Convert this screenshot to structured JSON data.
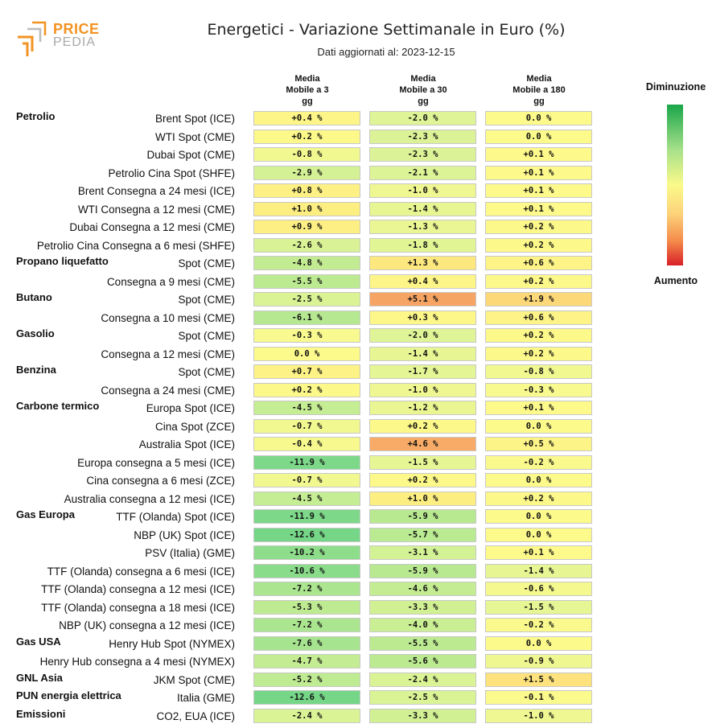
{
  "logo": {
    "word1": "PRICE",
    "word2": "PEDIA"
  },
  "colors": {
    "brand_orange": "#f39322",
    "brand_gray": "#a8a8a8"
  },
  "chart_data": {
    "type": "heatmap",
    "title": "Energetici - Variazione Settimanale in Euro (%)",
    "subtitle": "Dati aggiornati al: 2023-12-15",
    "columns": [
      [
        "Media",
        "Mobile a 3",
        "gg"
      ],
      [
        "Media",
        "Mobile a 30",
        "gg"
      ],
      [
        "Media",
        "Mobile a 180",
        "gg"
      ]
    ],
    "legend": {
      "top": "Diminuzione",
      "bottom": "Aumento"
    },
    "rows": [
      {
        "group": "Petrolio",
        "label": "Brent Spot (ICE)",
        "values": [
          0.4,
          -2.0,
          0.0
        ]
      },
      {
        "label": "WTI Spot (CME)",
        "values": [
          0.2,
          -2.3,
          0.0
        ]
      },
      {
        "label": "Dubai Spot (CME)",
        "values": [
          -0.8,
          -2.3,
          0.1
        ]
      },
      {
        "label": "Petrolio Cina Spot (SHFE)",
        "values": [
          -2.9,
          -2.1,
          0.1
        ]
      },
      {
        "label": "Brent Consegna a 24 mesi (ICE)",
        "values": [
          0.8,
          -1.0,
          0.1
        ]
      },
      {
        "label": "WTI Consegna a 12 mesi (CME)",
        "values": [
          1.0,
          -1.4,
          0.1
        ]
      },
      {
        "label": "Dubai Consegna a 12 mesi (CME)",
        "values": [
          0.9,
          -1.3,
          0.2
        ]
      },
      {
        "label": "Petrolio Cina Consegna a 6 mesi (SHFE)",
        "values": [
          -2.6,
          -1.8,
          0.2
        ]
      },
      {
        "group": "Propano liquefatto",
        "label": "Spot (CME)",
        "values": [
          -4.8,
          1.3,
          0.6
        ]
      },
      {
        "label": "Consegna a 9 mesi (CME)",
        "values": [
          -5.5,
          0.4,
          0.2
        ]
      },
      {
        "group": "Butano",
        "label": "Spot (CME)",
        "values": [
          -2.5,
          5.1,
          1.9
        ]
      },
      {
        "label": "Consegna a 10 mesi (CME)",
        "values": [
          -6.1,
          0.3,
          0.6
        ]
      },
      {
        "group": "Gasolio",
        "label": "Spot (CME)",
        "values": [
          -0.3,
          -2.0,
          0.2
        ]
      },
      {
        "label": "Consegna a 12 mesi (CME)",
        "values": [
          0.0,
          -1.4,
          0.2
        ]
      },
      {
        "group": "Benzina",
        "label": "Spot (CME)",
        "values": [
          0.7,
          -1.7,
          -0.8
        ]
      },
      {
        "label": "Consegna a 24 mesi (CME)",
        "values": [
          0.2,
          -1.0,
          -0.3
        ]
      },
      {
        "group": "Carbone termico",
        "label": "Europa Spot (ICE)",
        "values": [
          -4.5,
          -1.2,
          0.1
        ]
      },
      {
        "label": "Cina Spot (ZCE)",
        "values": [
          -0.7,
          0.2,
          0.0
        ]
      },
      {
        "label": "Australia Spot (ICE)",
        "values": [
          -0.4,
          4.6,
          0.5
        ]
      },
      {
        "label": "Europa consegna a 5 mesi (ICE)",
        "values": [
          -11.9,
          -1.5,
          -0.2
        ]
      },
      {
        "label": "Cina consegna a 6 mesi (ZCE)",
        "values": [
          -0.7,
          0.2,
          0.0
        ]
      },
      {
        "label": "Australia consegna a 12 mesi (ICE)",
        "values": [
          -4.5,
          1.0,
          0.2
        ]
      },
      {
        "group": "Gas Europa",
        "label": "TTF (Olanda) Spot (ICE)",
        "values": [
          -11.9,
          -5.9,
          0.0
        ]
      },
      {
        "label": "NBP (UK) Spot (ICE)",
        "values": [
          -12.6,
          -5.7,
          0.0
        ]
      },
      {
        "label": "PSV (Italia) (GME)",
        "values": [
          -10.2,
          -3.1,
          0.1
        ]
      },
      {
        "label": "TTF (Olanda) consegna a 6 mesi (ICE)",
        "values": [
          -10.6,
          -5.9,
          -1.4
        ]
      },
      {
        "label": "TTF (Olanda) consegna a 12 mesi (ICE)",
        "values": [
          -7.2,
          -4.6,
          -0.6
        ]
      },
      {
        "label": "TTF (Olanda) consegna a 18 mesi (ICE)",
        "values": [
          -5.3,
          -3.3,
          -1.5
        ]
      },
      {
        "label": "NBP (UK) consegna a 12 mesi (ICE)",
        "values": [
          -7.2,
          -4.0,
          -0.2
        ]
      },
      {
        "group": "Gas USA",
        "label": "Henry Hub Spot (NYMEX)",
        "values": [
          -7.6,
          -5.5,
          0.0
        ]
      },
      {
        "label": "Henry Hub consegna a 4 mesi (NYMEX)",
        "values": [
          -4.7,
          -5.6,
          -0.9
        ]
      },
      {
        "group": "GNL Asia",
        "label": "JKM Spot (CME)",
        "values": [
          -5.2,
          -2.4,
          1.5
        ]
      },
      {
        "group": "PUN energia elettrica",
        "label": "Italia (GME)",
        "values": [
          -12.6,
          -2.5,
          -0.1
        ]
      },
      {
        "group": "Emissioni",
        "label": "CO2, EUA (ICE)",
        "values": [
          -2.4,
          -3.3,
          -1.0
        ]
      }
    ]
  }
}
